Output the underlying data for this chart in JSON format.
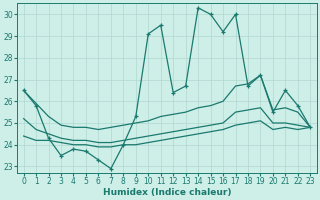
{
  "xlabel": "Humidex (Indice chaleur)",
  "x": [
    0,
    1,
    2,
    3,
    4,
    5,
    6,
    7,
    8,
    9,
    10,
    11,
    12,
    13,
    14,
    15,
    16,
    17,
    18,
    19,
    20,
    21,
    22,
    23
  ],
  "series": {
    "line_jagged": [
      26.5,
      25.8,
      24.3,
      23.5,
      23.8,
      23.7,
      23.3,
      22.9,
      24.0,
      25.3,
      29.1,
      29.5,
      26.4,
      26.7,
      30.3,
      30.0,
      29.2,
      30.0,
      26.7,
      27.2,
      25.5,
      26.5,
      25.8,
      24.8
    ],
    "line_upper": [
      26.5,
      25.9,
      25.3,
      24.9,
      24.8,
      24.8,
      24.7,
      24.8,
      24.9,
      25.0,
      25.1,
      25.3,
      25.4,
      25.5,
      25.7,
      25.8,
      26.0,
      26.7,
      26.8,
      27.2,
      25.6,
      25.7,
      25.5,
      24.8
    ],
    "line_mid": [
      25.2,
      24.7,
      24.5,
      24.3,
      24.2,
      24.2,
      24.1,
      24.1,
      24.2,
      24.3,
      24.4,
      24.5,
      24.6,
      24.7,
      24.8,
      24.9,
      25.0,
      25.5,
      25.6,
      25.7,
      25.0,
      25.0,
      24.9,
      24.8
    ],
    "line_lower": [
      24.4,
      24.2,
      24.2,
      24.1,
      24.0,
      24.0,
      23.9,
      23.9,
      24.0,
      24.0,
      24.1,
      24.2,
      24.3,
      24.4,
      24.5,
      24.6,
      24.7,
      24.9,
      25.0,
      25.1,
      24.7,
      24.8,
      24.7,
      24.8
    ]
  },
  "color": "#1a7a6e",
  "bg_color": "#ceeee8",
  "grid_color": "#afd8d0",
  "ylim": [
    22.7,
    30.5
  ],
  "yticks": [
    23,
    24,
    25,
    26,
    27,
    28,
    29,
    30
  ],
  "xlim": [
    -0.5,
    23.5
  ],
  "xticks": [
    0,
    1,
    2,
    3,
    4,
    5,
    6,
    7,
    8,
    9,
    10,
    11,
    12,
    13,
    14,
    15,
    16,
    17,
    18,
    19,
    20,
    21,
    22,
    23
  ]
}
